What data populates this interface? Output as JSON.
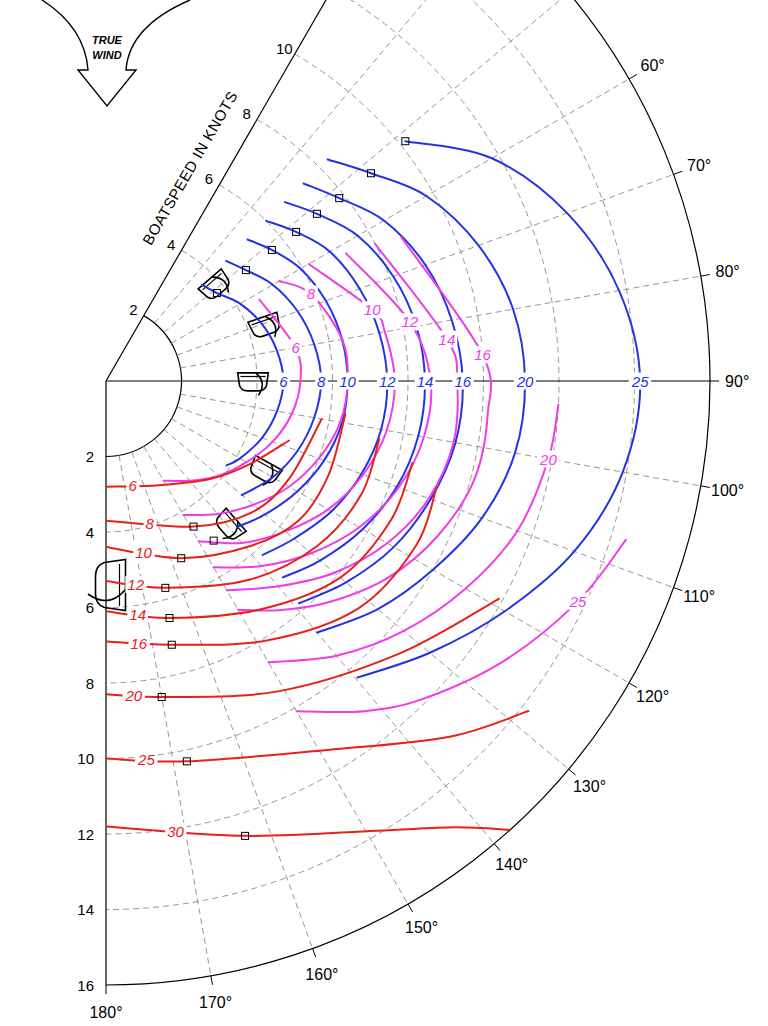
{
  "chart_data": {
    "type": "polar",
    "annotation": "TRUE WIND",
    "y_label": "BOATSPEED IN KNOTS",
    "xlim": [
      30,
      180
    ],
    "xticks": [
      {
        "value": 60,
        "label": "60°"
      },
      {
        "value": 70,
        "label": "70°"
      },
      {
        "value": 80,
        "label": "80°"
      },
      {
        "value": 90,
        "label": "90°"
      },
      {
        "value": 100,
        "label": "100°"
      },
      {
        "value": 110,
        "label": "110°"
      },
      {
        "value": 120,
        "label": "120°"
      },
      {
        "value": 130,
        "label": "130°"
      },
      {
        "value": 140,
        "label": "140°"
      },
      {
        "value": 150,
        "label": "150°"
      },
      {
        "value": 160,
        "label": "160°"
      },
      {
        "value": 170,
        "label": "170°"
      },
      {
        "value": 180,
        "label": "180°"
      }
    ],
    "xgrid": [
      40,
      50,
      60,
      70,
      80,
      100,
      110,
      120,
      130,
      140,
      150,
      160,
      170
    ],
    "axis_lines": [
      30,
      90,
      180
    ],
    "ylim": [
      0,
      16
    ],
    "yticks": [
      2,
      4,
      6,
      8,
      10,
      12,
      14,
      16
    ],
    "grid": true,
    "marker": "square",
    "series": [
      {
        "name": "6",
        "color": "#2233e6",
        "x": [
          45,
          51.6,
          60,
          70,
          80,
          90,
          100,
          110,
          120,
          125
        ],
        "values": [
          3.6,
          3.75,
          4.1,
          4.4,
          4.6,
          4.7,
          4.6,
          4.4,
          4.1,
          3.9
        ],
        "target": [
          51.6,
          3.75
        ]
      },
      {
        "name": "8",
        "color": "#2233e6",
        "x": [
          45,
          51.6,
          60,
          70,
          80,
          90,
          100,
          110,
          120,
          130
        ],
        "values": [
          4.5,
          4.73,
          5.1,
          5.4,
          5.6,
          5.7,
          5.6,
          5.4,
          5.1,
          4.7
        ],
        "target": [
          51.6,
          4.73
        ]
      },
      {
        "name": "10",
        "color": "#2233e6",
        "x": [
          45,
          51.7,
          60,
          70,
          80,
          90,
          100,
          110,
          120,
          130,
          138
        ],
        "values": [
          5.3,
          5.6,
          5.95,
          6.2,
          6.35,
          6.4,
          6.35,
          6.15,
          5.85,
          5.5,
          5.2
        ],
        "target": [
          51.7,
          5.6
        ]
      },
      {
        "name": "12",
        "color": "#2233e6",
        "x": [
          45,
          51.9,
          60,
          70,
          80,
          90,
          100,
          110,
          120,
          130,
          138
        ],
        "values": [
          6.0,
          6.4,
          6.85,
          7.15,
          7.35,
          7.45,
          7.4,
          7.2,
          6.9,
          6.5,
          6.2
        ],
        "target": [
          51.9,
          6.4
        ]
      },
      {
        "name": "14",
        "color": "#2233e6",
        "x": [
          45,
          51.6,
          60,
          70,
          80,
          90,
          100,
          110,
          120,
          130,
          138
        ],
        "values": [
          6.7,
          7.13,
          7.7,
          8.1,
          8.35,
          8.45,
          8.4,
          8.2,
          7.85,
          7.4,
          7.0
        ],
        "target": [
          51.6,
          7.13
        ]
      },
      {
        "name": "16",
        "color": "#2233e6",
        "x": [
          45,
          51.9,
          60,
          70,
          80,
          90,
          100,
          110,
          120,
          130,
          139
        ],
        "values": [
          7.4,
          7.85,
          8.5,
          9.0,
          9.3,
          9.45,
          9.4,
          9.15,
          8.8,
          8.3,
          7.8
        ],
        "target": [
          51.9,
          7.85
        ]
      },
      {
        "name": "20",
        "color": "#2233e6",
        "x": [
          45,
          51.9,
          60,
          70,
          80,
          90,
          100,
          110,
          120,
          130,
          140
        ],
        "values": [
          8.3,
          8.92,
          9.8,
          10.5,
          10.95,
          11.1,
          11.0,
          10.6,
          10.0,
          9.4,
          8.7
        ],
        "target": [
          51.9,
          8.92
        ]
      },
      {
        "name": "25",
        "color": "#2233e6",
        "x": [
          51.3,
          60,
          70,
          80,
          90,
          100,
          110,
          120,
          130,
          139.7
        ],
        "values": [
          10.16,
          11.8,
          13.0,
          13.8,
          14.15,
          13.9,
          13.2,
          12.2,
          11.2,
          10.3
        ],
        "target": [
          51.3,
          10.16
        ]
      },
      {
        "name": "6",
        "color": "#f03ce6",
        "x": [
          62,
          80,
          90,
          100,
          110,
          120,
          130,
          140,
          150
        ],
        "values": [
          4.6,
          5.1,
          5.15,
          5.0,
          4.7,
          4.3,
          3.9,
          3.45,
          3.05
        ]
      },
      {
        "name": "8",
        "color": "#f03ce6",
        "x": [
          60,
          67,
          80,
          90,
          100,
          110,
          120,
          130,
          140,
          150
        ],
        "values": [
          5.3,
          5.9,
          6.35,
          6.4,
          6.3,
          6.0,
          5.6,
          5.1,
          4.6,
          4.1
        ]
      },
      {
        "name": "10",
        "color": "#f03ce6",
        "x": [
          60,
          75,
          80,
          90,
          100,
          110,
          120,
          130,
          140,
          150
        ],
        "values": [
          6.2,
          7.3,
          7.5,
          7.65,
          7.55,
          7.25,
          6.8,
          6.2,
          5.6,
          4.9
        ],
        "target": [
          146,
          5.1
        ]
      },
      {
        "name": "12",
        "color": "#f03ce6",
        "x": [
          62,
          79,
          90,
          100,
          110,
          120,
          130,
          140,
          150
        ],
        "values": [
          7.2,
          8.2,
          8.6,
          8.55,
          8.25,
          7.75,
          7.1,
          6.4,
          5.7
        ]
      },
      {
        "name": "14",
        "color": "#f03ce6",
        "x": [
          63,
          83,
          90,
          100,
          110,
          120,
          130,
          140,
          150
        ],
        "values": [
          8.0,
          9.1,
          9.3,
          9.35,
          9.1,
          8.6,
          7.9,
          7.1,
          6.4
        ]
      },
      {
        "name": "16",
        "color": "#f03ce6",
        "x": [
          64,
          86,
          95,
          105,
          115,
          125,
          135,
          143,
          150
        ],
        "values": [
          8.7,
          10.0,
          10.15,
          10.1,
          9.7,
          9.1,
          8.3,
          7.6,
          7.0
        ]
      },
      {
        "name": "20",
        "color": "#f03ce6",
        "x": [
          93,
          100,
          110,
          120,
          130,
          140,
          150
        ],
        "values": [
          12.0,
          11.9,
          11.6,
          11.0,
          10.3,
          9.5,
          8.6
        ]
      },
      {
        "name": "25",
        "color": "#f03ce6",
        "x": [
          107,
          115,
          125,
          135,
          142,
          150
        ],
        "values": [
          14.4,
          13.8,
          12.9,
          11.9,
          11.1,
          10.1
        ]
      },
      {
        "name": "6",
        "color": "#e8201c",
        "x": [
          180,
          153,
          133,
          120,
          108
        ],
        "values": [
          2.8,
          3.1,
          3.8,
          4.4,
          5.1
        ]
      },
      {
        "name": "8",
        "color": "#e8201c",
        "x": [
          180,
          149,
          132,
          118,
          100
        ],
        "values": [
          3.7,
          4.5,
          5.2,
          5.5,
          5.8
        ],
        "target": [
          149,
          4.5
        ]
      },
      {
        "name": "10",
        "color": "#e8201c",
        "x": [
          180,
          157,
          139,
          126,
          113,
          98
        ],
        "values": [
          4.4,
          5.1,
          5.8,
          6.3,
          6.4,
          6.4
        ],
        "target": [
          157,
          5.1
        ]
      },
      {
        "name": "12",
        "color": "#e8201c",
        "x": [
          180,
          164,
          144,
          128,
          114,
          102
        ],
        "values": [
          5.3,
          5.7,
          6.5,
          7.1,
          7.4,
          7.4
        ],
        "target": [
          164,
          5.7
        ]
      },
      {
        "name": "14",
        "color": "#e8201c",
        "x": [
          180,
          165,
          146,
          130,
          116,
          105
        ],
        "values": [
          6.1,
          6.5,
          7.3,
          8.1,
          8.4,
          8.4
        ],
        "target": [
          165,
          6.5
        ]
      },
      {
        "name": "16",
        "color": "#e8201c",
        "x": [
          180,
          166,
          148,
          132,
          118,
          108
        ],
        "values": [
          6.9,
          7.2,
          8.1,
          9.0,
          9.3,
          9.2
        ],
        "target": [
          166,
          7.2
        ]
      },
      {
        "name": "20",
        "color": "#e8201c",
        "x": [
          180,
          170,
          151,
          133,
          119
        ],
        "values": [
          8.3,
          8.5,
          9.4,
          10.6,
          11.9
        ],
        "target": [
          170,
          8.5
        ]
      },
      {
        "name": "25",
        "color": "#e8201c",
        "x": [
          180,
          168,
          149,
          136,
          128
        ],
        "values": [
          10.0,
          10.3,
          11.4,
          13.1,
          14.2
        ],
        "target": [
          168,
          10.3
        ]
      },
      {
        "name": "30",
        "color": "#e8201c",
        "x": [
          180,
          163,
          149,
          142,
          138
        ],
        "values": [
          11.8,
          12.6,
          13.9,
          15.0,
          16.0
        ],
        "target": [
          163,
          12.6
        ]
      }
    ]
  }
}
